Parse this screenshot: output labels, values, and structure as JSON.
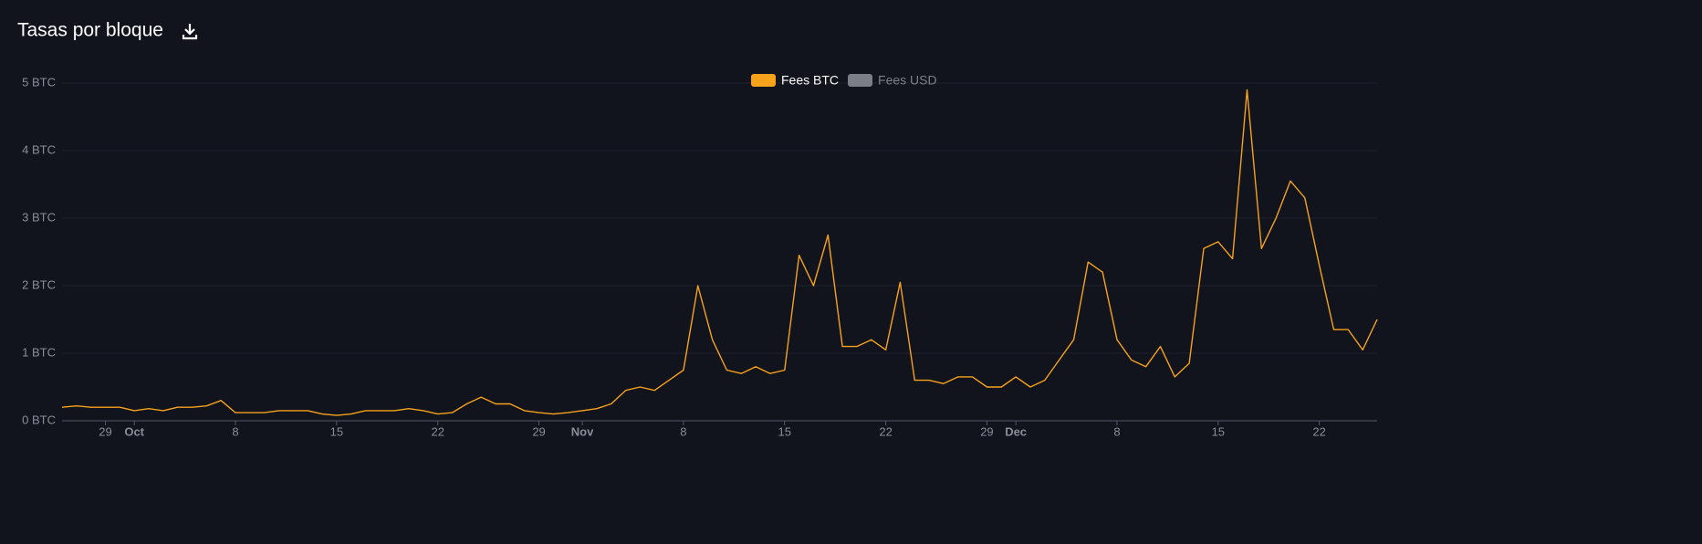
{
  "chart_data": {
    "type": "line",
    "title": "Tasas por bloque",
    "x": [
      "09-26",
      "09-27",
      "09-28",
      "09-29",
      "09-30",
      "10-01",
      "10-02",
      "10-03",
      "10-04",
      "10-05",
      "10-06",
      "10-07",
      "10-08",
      "10-09",
      "10-10",
      "10-11",
      "10-12",
      "10-13",
      "10-14",
      "10-15",
      "10-16",
      "10-17",
      "10-18",
      "10-19",
      "10-20",
      "10-21",
      "10-22",
      "10-23",
      "10-24",
      "10-25",
      "10-26",
      "10-27",
      "10-28",
      "10-29",
      "10-30",
      "10-31",
      "11-01",
      "11-02",
      "11-03",
      "11-04",
      "11-05",
      "11-06",
      "11-07",
      "11-08",
      "11-09",
      "11-10",
      "11-11",
      "11-12",
      "11-13",
      "11-14",
      "11-15",
      "11-16",
      "11-17",
      "11-18",
      "11-19",
      "11-20",
      "11-21",
      "11-22",
      "11-23",
      "11-24",
      "11-25",
      "11-26",
      "11-27",
      "11-28",
      "11-29",
      "11-30",
      "12-01",
      "12-02",
      "12-03",
      "12-04",
      "12-05",
      "12-06",
      "12-07",
      "12-08",
      "12-09",
      "12-10",
      "12-11",
      "12-12",
      "12-13",
      "12-14",
      "12-15",
      "12-16",
      "12-17",
      "12-18",
      "12-19",
      "12-20",
      "12-21",
      "12-22",
      "12-23",
      "12-24",
      "12-25",
      "12-26"
    ],
    "series": [
      {
        "name": "Fees BTC",
        "color": "#f7a21b",
        "values": [
          0.2,
          0.22,
          0.2,
          0.2,
          0.2,
          0.15,
          0.18,
          0.15,
          0.2,
          0.2,
          0.22,
          0.3,
          0.12,
          0.12,
          0.12,
          0.15,
          0.15,
          0.15,
          0.1,
          0.08,
          0.1,
          0.15,
          0.15,
          0.15,
          0.18,
          0.15,
          0.1,
          0.12,
          0.25,
          0.35,
          0.25,
          0.25,
          0.15,
          0.12,
          0.1,
          0.12,
          0.15,
          0.18,
          0.25,
          0.45,
          0.5,
          0.45,
          0.6,
          0.75,
          2.0,
          1.2,
          0.75,
          0.7,
          0.8,
          0.7,
          0.75,
          2.45,
          2.0,
          2.75,
          1.1,
          1.1,
          1.2,
          1.05,
          2.05,
          0.6,
          0.6,
          0.55,
          0.65,
          0.65,
          0.5,
          0.5,
          0.65,
          0.5,
          0.6,
          0.9,
          1.2,
          2.35,
          2.2,
          1.2,
          0.9,
          0.8,
          1.1,
          0.65,
          0.85,
          2.55,
          2.65,
          2.4,
          4.9,
          2.55,
          3.0,
          3.55,
          3.3,
          2.3,
          1.35,
          1.35,
          1.05,
          1.5
        ]
      },
      {
        "name": "Fees USD",
        "color": "#7d7f88",
        "visible": false
      }
    ],
    "xlim": [
      "09-26",
      "12-26"
    ],
    "xticks": [
      {
        "value": "09-29",
        "label": "29"
      },
      {
        "value": "10-01",
        "label": "Oct"
      },
      {
        "value": "10-08",
        "label": "8"
      },
      {
        "value": "10-15",
        "label": "15"
      },
      {
        "value": "10-22",
        "label": "22"
      },
      {
        "value": "10-29",
        "label": "29"
      },
      {
        "value": "11-01",
        "label": "Nov"
      },
      {
        "value": "11-08",
        "label": "8"
      },
      {
        "value": "11-15",
        "label": "15"
      },
      {
        "value": "11-22",
        "label": "22"
      },
      {
        "value": "11-29",
        "label": "29"
      },
      {
        "value": "12-01",
        "label": "Dec"
      },
      {
        "value": "12-08",
        "label": "8"
      },
      {
        "value": "12-15",
        "label": "15"
      },
      {
        "value": "12-22",
        "label": "22"
      }
    ],
    "ylim": [
      0,
      5
    ],
    "yticks": [
      {
        "value": 0,
        "label": "0 BTC"
      },
      {
        "value": 1,
        "label": "1 BTC"
      },
      {
        "value": 2,
        "label": "2 BTC"
      },
      {
        "value": 3,
        "label": "3 BTC"
      },
      {
        "value": 4,
        "label": "4 BTC"
      },
      {
        "value": 5,
        "label": "5 BTC"
      }
    ],
    "grid": true,
    "legend": "top"
  }
}
